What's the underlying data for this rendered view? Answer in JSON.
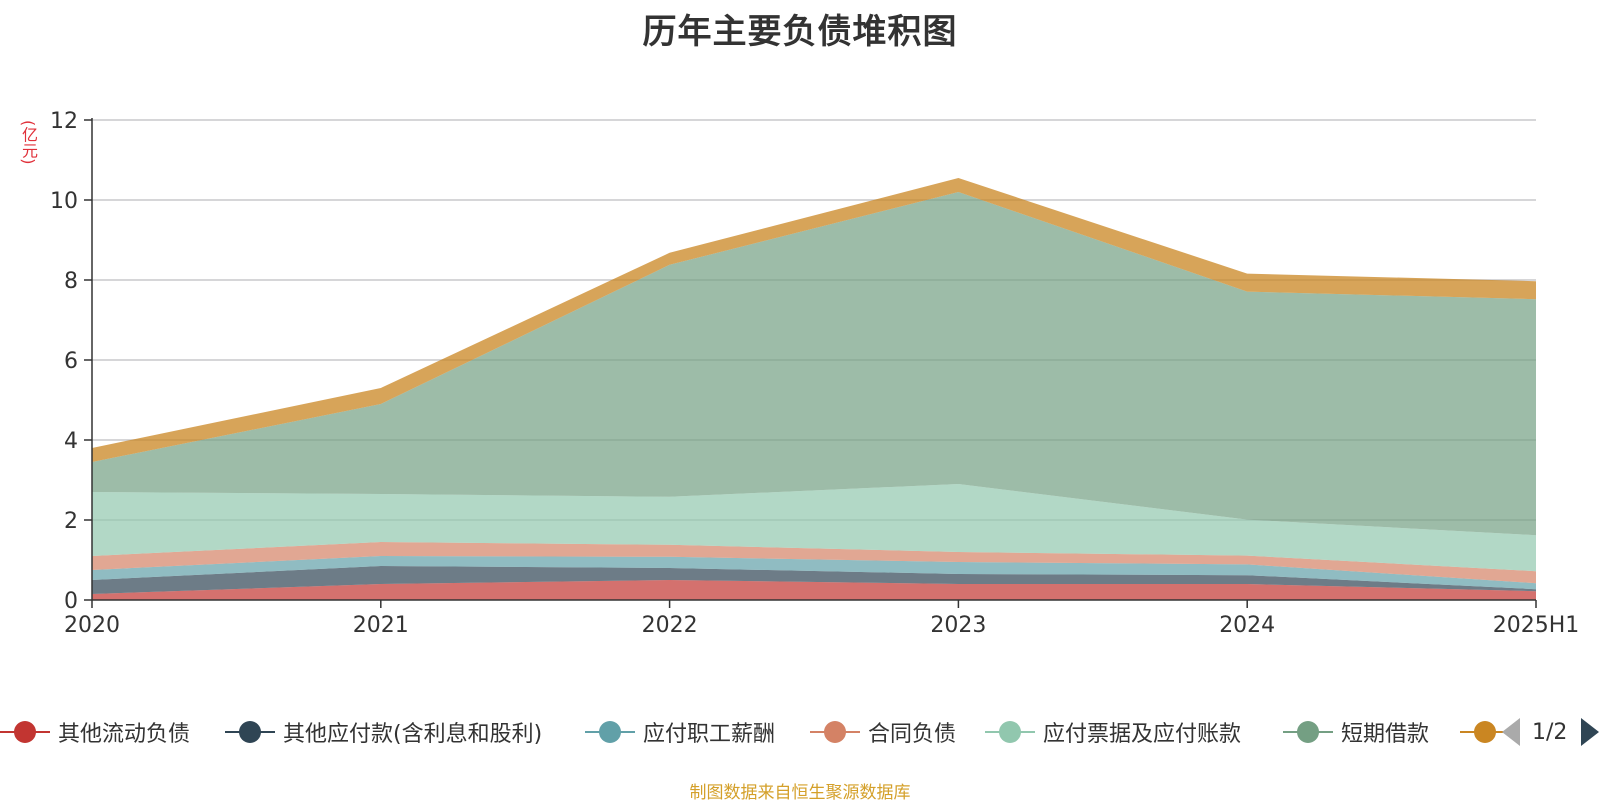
{
  "chart_data": {
    "type": "area",
    "title": "历年主要负债堆积图",
    "ylabel": "(亿元)",
    "x": [
      "2020",
      "2021",
      "2022",
      "2023",
      "2024",
      "2025H1"
    ],
    "y_ticks": [
      "0",
      "2",
      "4",
      "6",
      "8",
      "10",
      "12"
    ],
    "ylim": [
      0,
      12
    ],
    "stacked": true,
    "grid": true,
    "legend_position": "bottom",
    "series": [
      {
        "name": "其他流动负债",
        "color": "#c23531",
        "values": [
          0.15,
          0.4,
          0.5,
          0.4,
          0.4,
          0.22
        ]
      },
      {
        "name": "其他应付款(含利息和股利)",
        "color": "#2f4554",
        "values": [
          0.35,
          0.45,
          0.3,
          0.25,
          0.22,
          0.05
        ]
      },
      {
        "name": "应付职工薪酬",
        "color": "#61a0a8",
        "values": [
          0.25,
          0.25,
          0.28,
          0.3,
          0.27,
          0.15
        ]
      },
      {
        "name": "合同负债",
        "color": "#d48265",
        "values": [
          0.35,
          0.35,
          0.3,
          0.25,
          0.22,
          0.3
        ]
      },
      {
        "name": "应付票据及应付账款",
        "color": "#91c7ae",
        "values": [
          1.6,
          1.2,
          1.2,
          1.7,
          0.9,
          0.9
        ]
      },
      {
        "name": "短期借款",
        "color": "#749f83",
        "values": [
          0.75,
          2.25,
          5.8,
          7.3,
          5.7,
          5.9
        ]
      },
      {
        "color": "#ca8622",
        "values": [
          0.35,
          0.4,
          0.3,
          0.35,
          0.45,
          0.45
        ]
      }
    ]
  },
  "legend": {
    "page_text": "1/2"
  },
  "source_note": "制图数据来自恒生聚源数据库"
}
